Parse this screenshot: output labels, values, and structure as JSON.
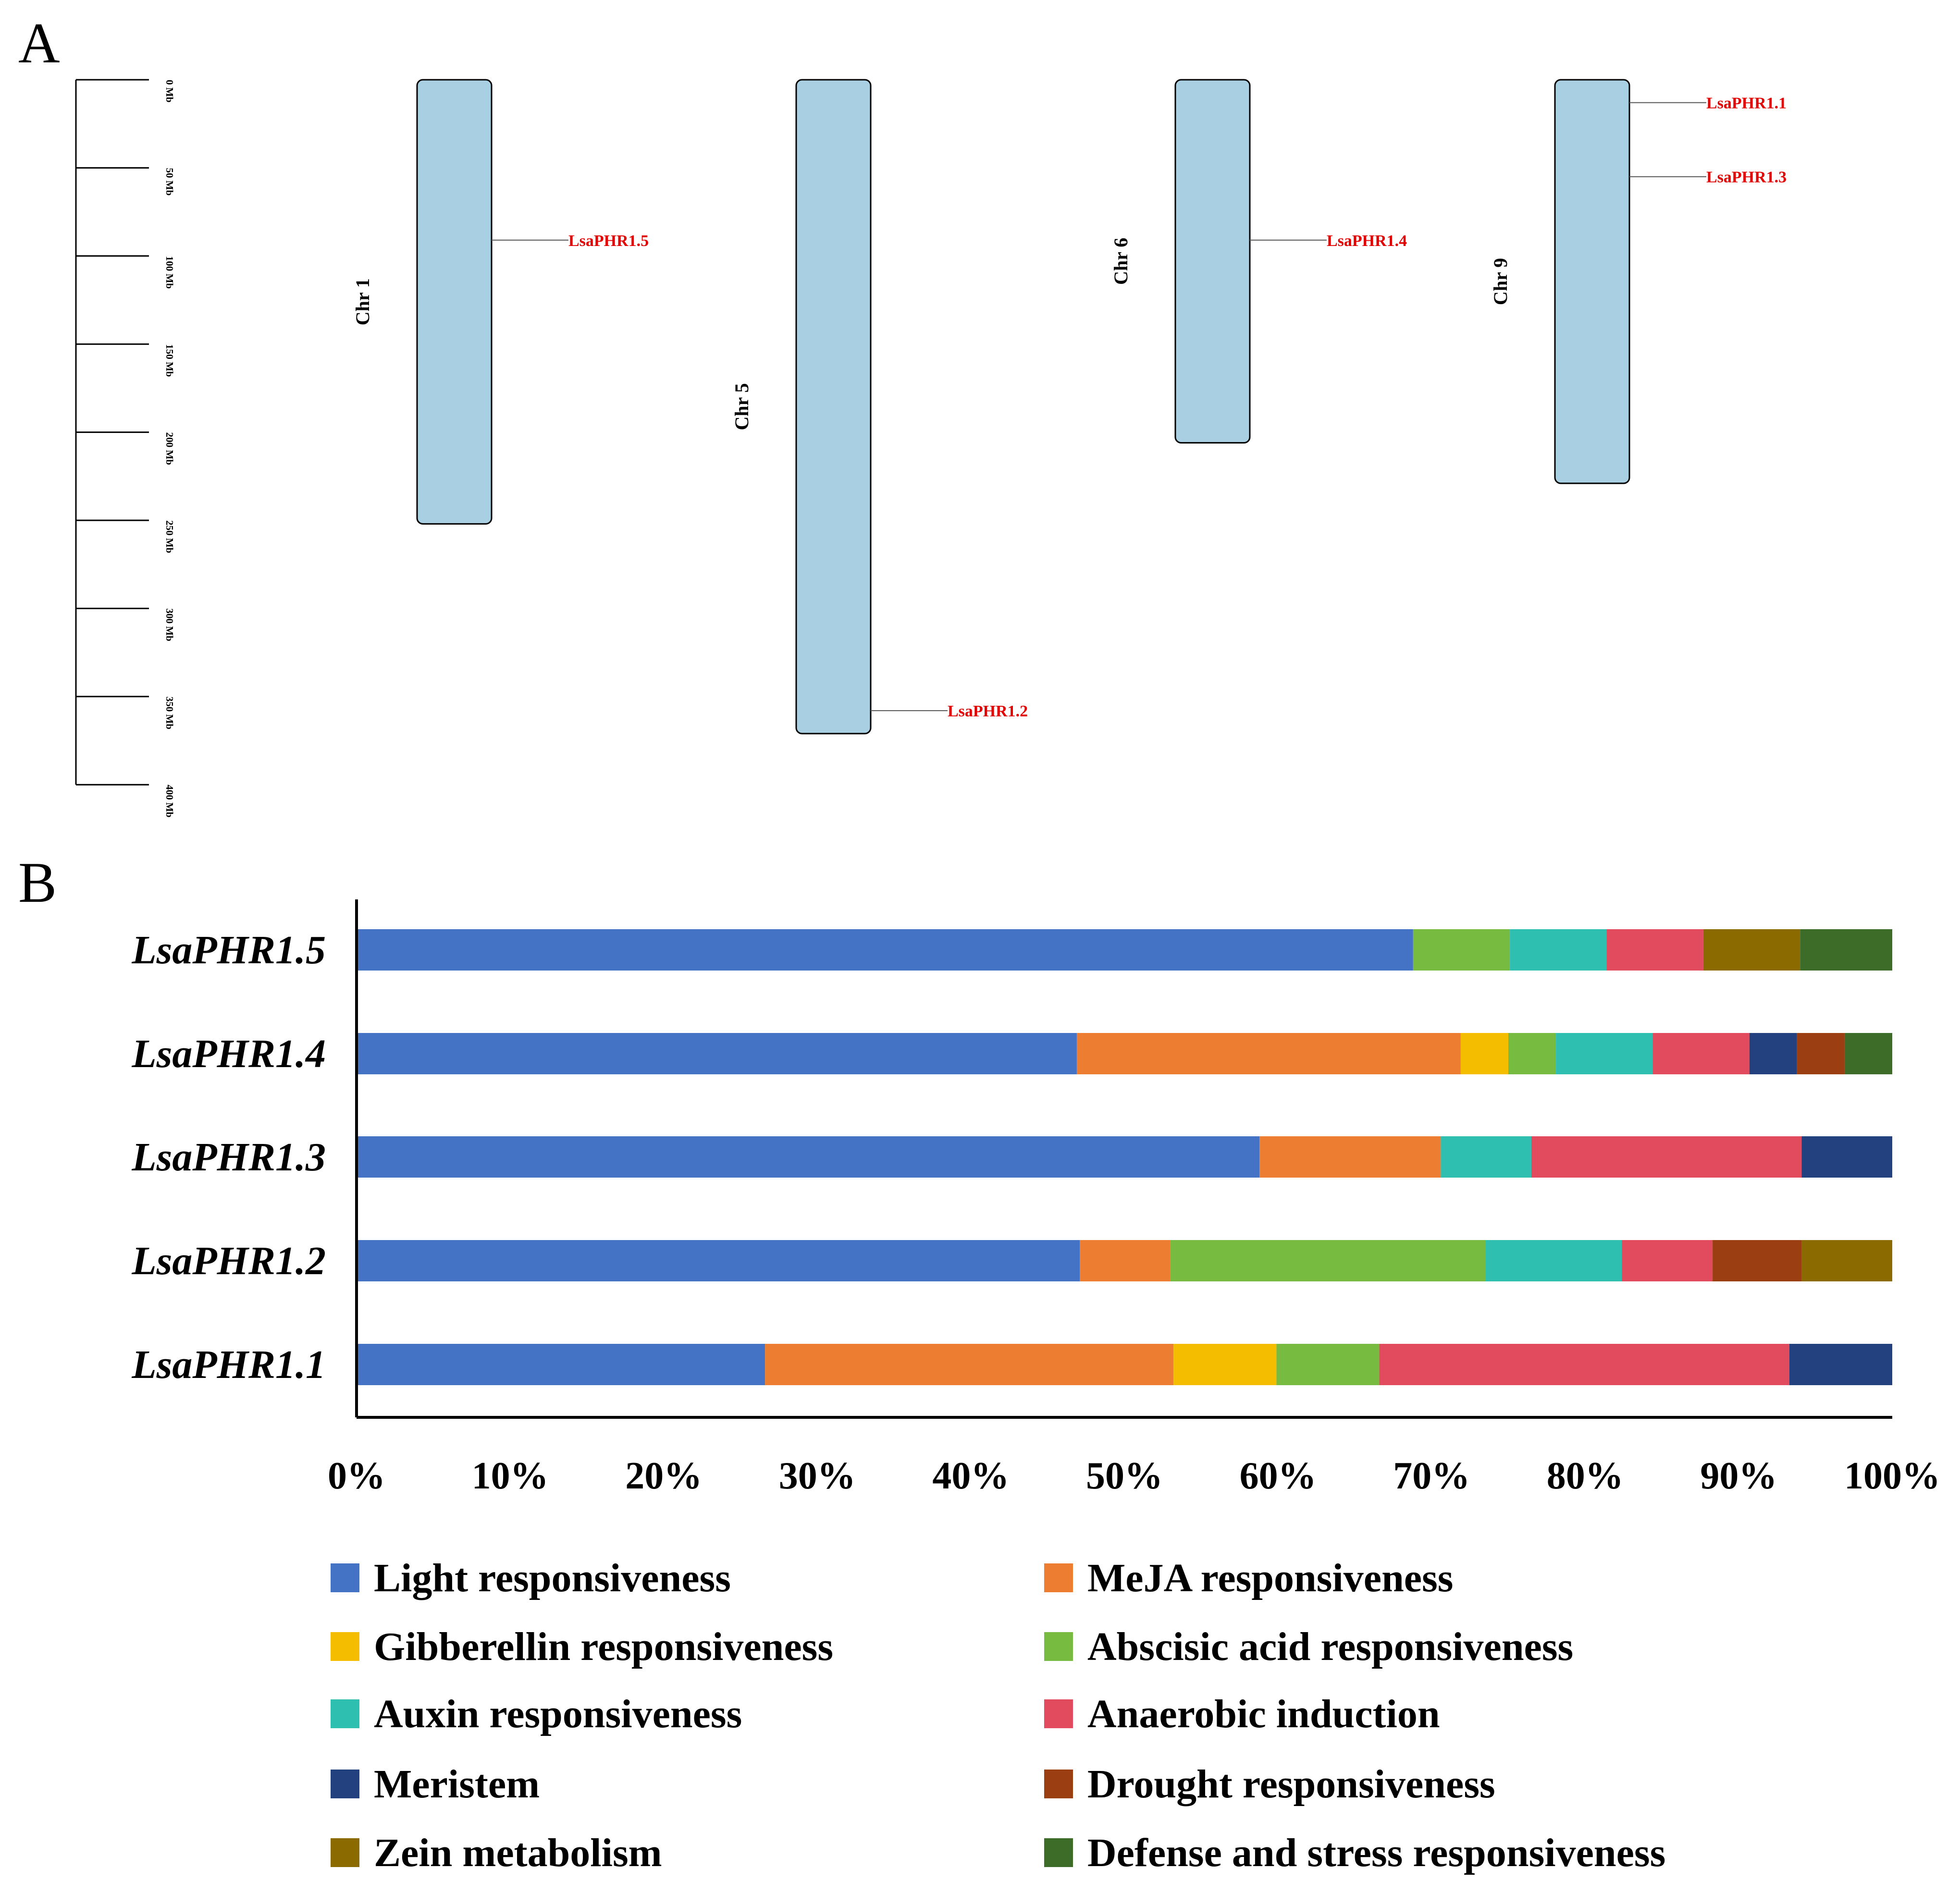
{
  "panels": {
    "a": "A",
    "b": "B"
  },
  "scale": {
    "unit": "Mb",
    "max": 400,
    "ticks": [
      "0 Mb",
      "50 Mb",
      "100 Mb",
      "150 Mb",
      "200 Mb",
      "250 Mb",
      "300 Mb",
      "350 Mb",
      "400 Mb"
    ]
  },
  "chromosomes": [
    {
      "label": "Chr 1",
      "length_mb": 252,
      "genes": [
        {
          "name": "LsaPHR1.5",
          "pos_mb": 91
        }
      ]
    },
    {
      "label": "Chr 5",
      "length_mb": 371,
      "genes": [
        {
          "name": "LsaPHR1.2",
          "pos_mb": 358
        }
      ]
    },
    {
      "label": "Chr 6",
      "length_mb": 206,
      "genes": [
        {
          "name": "LsaPHR1.4",
          "pos_mb": 91
        }
      ]
    },
    {
      "label": "Chr 9",
      "length_mb": 229,
      "genes": [
        {
          "name": "LsaPHR1.1",
          "pos_mb": 13
        },
        {
          "name": "LsaPHR1.3",
          "pos_mb": 55
        }
      ]
    }
  ],
  "chart_data": {
    "type": "bar",
    "orientation": "horizontal",
    "stacked": true,
    "normalized": true,
    "title": "",
    "xlabel": "",
    "ylabel": "",
    "xlim": [
      0,
      100
    ],
    "x_ticks": [
      "0%",
      "10%",
      "20%",
      "30%",
      "40%",
      "50%",
      "60%",
      "70%",
      "80%",
      "90%",
      "100%"
    ],
    "categories": [
      "LsaPHR1.5",
      "LsaPHR1.4",
      "LsaPHR1.3",
      "LsaPHR1.2",
      "LsaPHR1.1"
    ],
    "series": [
      {
        "name": "Light responsiveness",
        "color": "#4472c4",
        "values": [
          68.8,
          46.9,
          58.8,
          47.1,
          26.6
        ]
      },
      {
        "name": "MeJA responsiveness",
        "color": "#ed7d31",
        "values": [
          0,
          25,
          11.8,
          5.9,
          26.6
        ]
      },
      {
        "name": "Gibberellin responsiveness",
        "color": "#f5bd00",
        "values": [
          0,
          3.1,
          0,
          0,
          6.7
        ]
      },
      {
        "name": "Abscisic acid responsiveness",
        "color": "#77bc41",
        "values": [
          6.3,
          3.1,
          0,
          20.5,
          6.7
        ]
      },
      {
        "name": "Auxin responsiveness",
        "color": "#2fbfb0",
        "values": [
          6.3,
          6.3,
          5.9,
          8.9,
          0
        ]
      },
      {
        "name": "Anaerobic induction",
        "color": "#e24a5d",
        "values": [
          6.3,
          6.3,
          17.6,
          5.9,
          26.7
        ]
      },
      {
        "name": "Meristem",
        "color": "#23417f",
        "values": [
          0,
          3.1,
          5.9,
          0,
          6.7
        ]
      },
      {
        "name": "Drought responsiveness",
        "color": "#9b3f12",
        "values": [
          0,
          3.1,
          0,
          5.8,
          0
        ]
      },
      {
        "name": "Zein metabolism",
        "color": "#8b6a00",
        "values": [
          6.3,
          0,
          0,
          5.9,
          0
        ]
      },
      {
        "name": "Defense and stress responsiveness",
        "color": "#3d6c28",
        "values": [
          6.0,
          3.1,
          0,
          0,
          0
        ]
      }
    ]
  },
  "colors": {
    "chromosome_fill": "#a9cfe3",
    "gene_label": "#e00000",
    "axis": "#000000"
  }
}
